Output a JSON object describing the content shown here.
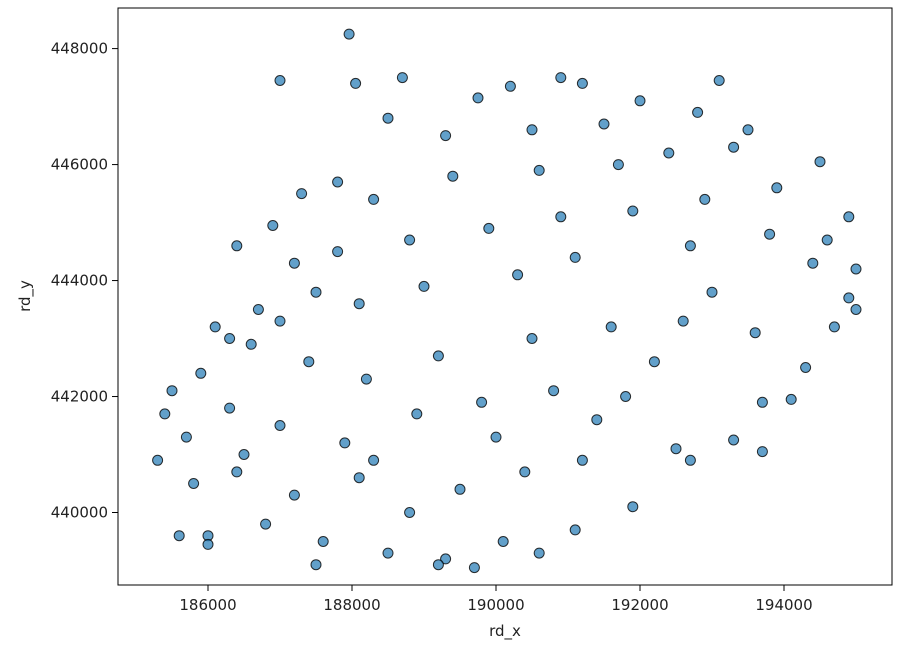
{
  "chart_data": {
    "type": "scatter",
    "title": "",
    "xlabel": "rd_x",
    "ylabel": "rd_y",
    "xlim": [
      184750,
      195500
    ],
    "ylim": [
      438750,
      448700
    ],
    "xticks": [
      186000,
      188000,
      190000,
      192000,
      194000
    ],
    "yticks": [
      440000,
      442000,
      444000,
      446000,
      448000
    ],
    "grid": false,
    "legend": "none",
    "point_color": "#1f77b4",
    "edge_color": "#000000",
    "point_alpha": 0.7,
    "series": [
      {
        "values": [
          [
            187960,
            448250
          ],
          [
            188700,
            447500
          ],
          [
            187000,
            447450
          ],
          [
            188050,
            447400
          ],
          [
            190900,
            447500
          ],
          [
            193100,
            447450
          ],
          [
            191200,
            447400
          ],
          [
            189750,
            447150
          ],
          [
            190200,
            447350
          ],
          [
            192000,
            447100
          ],
          [
            188500,
            446800
          ],
          [
            189300,
            446500
          ],
          [
            190500,
            446600
          ],
          [
            191500,
            446700
          ],
          [
            192800,
            446900
          ],
          [
            193500,
            446600
          ],
          [
            187300,
            445500
          ],
          [
            187800,
            445700
          ],
          [
            188300,
            445400
          ],
          [
            189400,
            445800
          ],
          [
            190600,
            445900
          ],
          [
            191700,
            446000
          ],
          [
            192400,
            446200
          ],
          [
            193300,
            446300
          ],
          [
            194500,
            446050
          ],
          [
            194900,
            445100
          ],
          [
            195000,
            444200
          ],
          [
            186400,
            444600
          ],
          [
            186900,
            444950
          ],
          [
            187200,
            444300
          ],
          [
            187500,
            443800
          ],
          [
            188100,
            443600
          ],
          [
            189000,
            443900
          ],
          [
            190300,
            444100
          ],
          [
            191100,
            444400
          ],
          [
            192700,
            444600
          ],
          [
            193800,
            444800
          ],
          [
            194400,
            444300
          ],
          [
            194900,
            443700
          ],
          [
            186100,
            443200
          ],
          [
            186600,
            442900
          ],
          [
            187400,
            442600
          ],
          [
            188200,
            442300
          ],
          [
            189200,
            442700
          ],
          [
            190500,
            443000
          ],
          [
            191600,
            443200
          ],
          [
            192600,
            443300
          ],
          [
            193600,
            443100
          ],
          [
            194300,
            442500
          ],
          [
            193700,
            441900
          ],
          [
            194100,
            441950
          ],
          [
            185400,
            441700
          ],
          [
            185700,
            441300
          ],
          [
            186300,
            441800
          ],
          [
            187000,
            441500
          ],
          [
            187900,
            441200
          ],
          [
            188900,
            441700
          ],
          [
            189800,
            441900
          ],
          [
            190800,
            442100
          ],
          [
            191800,
            442000
          ],
          [
            192500,
            441100
          ],
          [
            193300,
            441250
          ],
          [
            193700,
            441050
          ],
          [
            185300,
            440900
          ],
          [
            185800,
            440500
          ],
          [
            186400,
            440700
          ],
          [
            187200,
            440300
          ],
          [
            188100,
            440600
          ],
          [
            188800,
            440000
          ],
          [
            189500,
            440400
          ],
          [
            190400,
            440700
          ],
          [
            191200,
            440900
          ],
          [
            191900,
            440100
          ],
          [
            192700,
            440900
          ],
          [
            186000,
            439600
          ],
          [
            186800,
            439800
          ],
          [
            187600,
            439500
          ],
          [
            188500,
            439300
          ],
          [
            189300,
            439200
          ],
          [
            190100,
            439500
          ],
          [
            190600,
            439300
          ],
          [
            191100,
            439700
          ],
          [
            189200,
            439100
          ],
          [
            189700,
            439050
          ],
          [
            187500,
            439100
          ],
          [
            185600,
            439600
          ],
          [
            186000,
            439450
          ],
          [
            188300,
            440900
          ],
          [
            190000,
            441300
          ],
          [
            191400,
            441600
          ],
          [
            192200,
            442600
          ],
          [
            193000,
            443800
          ],
          [
            194600,
            444700
          ],
          [
            195000,
            443500
          ],
          [
            194700,
            443200
          ],
          [
            193900,
            445600
          ],
          [
            192900,
            445400
          ],
          [
            191900,
            445200
          ],
          [
            190900,
            445100
          ],
          [
            189900,
            444900
          ],
          [
            188800,
            444700
          ],
          [
            187800,
            444500
          ],
          [
            186500,
            441000
          ],
          [
            185500,
            442100
          ],
          [
            185900,
            442400
          ],
          [
            186300,
            443000
          ],
          [
            186700,
            443500
          ],
          [
            187000,
            443300
          ]
        ]
      }
    ]
  }
}
